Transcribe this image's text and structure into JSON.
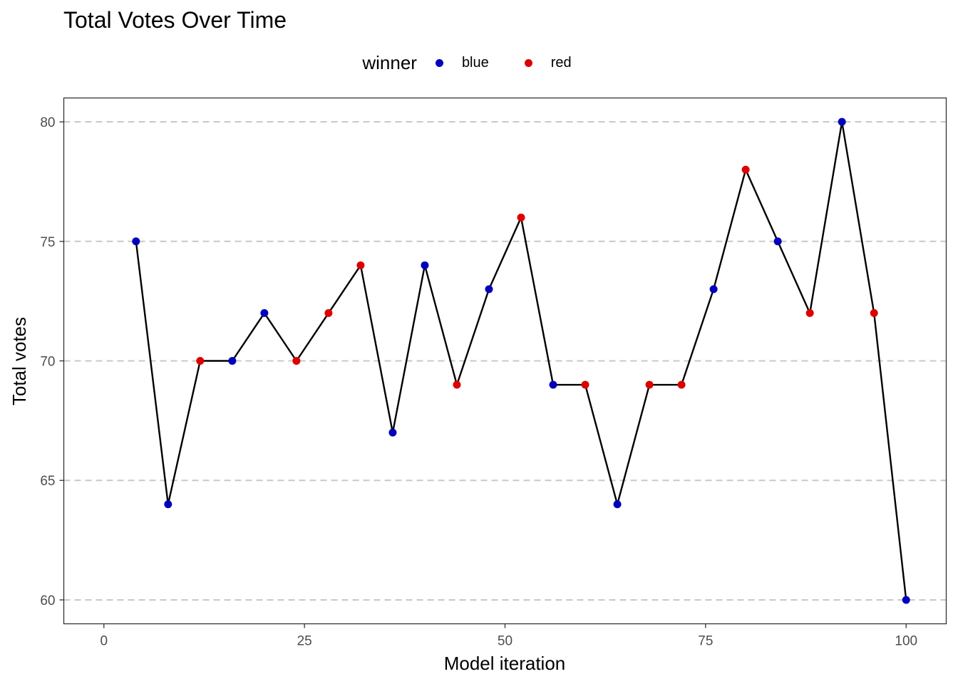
{
  "chart_data": {
    "type": "line",
    "title": "Total Votes Over Time",
    "xlabel": "Model iteration",
    "ylabel": "Total votes",
    "xlim": [
      -5,
      105
    ],
    "ylim": [
      59,
      81
    ],
    "x_ticks": [
      0,
      25,
      50,
      75,
      100
    ],
    "y_ticks": [
      60,
      65,
      70,
      75,
      80
    ],
    "grid": "horizontal dashed major lines",
    "legend": {
      "title": "winner",
      "placement": "top",
      "entries": [
        {
          "label": "blue",
          "color": "#0000bb"
        },
        {
          "label": "red",
          "color": "#dd0000"
        }
      ]
    },
    "line_color": "#000000",
    "points": [
      {
        "x": 4,
        "y": 75,
        "winner": "blue"
      },
      {
        "x": 8,
        "y": 64,
        "winner": "blue"
      },
      {
        "x": 12,
        "y": 70,
        "winner": "red"
      },
      {
        "x": 16,
        "y": 70,
        "winner": "blue"
      },
      {
        "x": 20,
        "y": 72,
        "winner": "blue"
      },
      {
        "x": 24,
        "y": 70,
        "winner": "red"
      },
      {
        "x": 28,
        "y": 72,
        "winner": "red"
      },
      {
        "x": 32,
        "y": 74,
        "winner": "red"
      },
      {
        "x": 36,
        "y": 67,
        "winner": "blue"
      },
      {
        "x": 40,
        "y": 74,
        "winner": "blue"
      },
      {
        "x": 44,
        "y": 69,
        "winner": "red"
      },
      {
        "x": 48,
        "y": 73,
        "winner": "blue"
      },
      {
        "x": 52,
        "y": 76,
        "winner": "red"
      },
      {
        "x": 56,
        "y": 69,
        "winner": "blue"
      },
      {
        "x": 60,
        "y": 69,
        "winner": "red"
      },
      {
        "x": 64,
        "y": 64,
        "winner": "blue"
      },
      {
        "x": 68,
        "y": 69,
        "winner": "red"
      },
      {
        "x": 72,
        "y": 69,
        "winner": "red"
      },
      {
        "x": 76,
        "y": 73,
        "winner": "blue"
      },
      {
        "x": 80,
        "y": 78,
        "winner": "red"
      },
      {
        "x": 84,
        "y": 75,
        "winner": "blue"
      },
      {
        "x": 88,
        "y": 72,
        "winner": "red"
      },
      {
        "x": 92,
        "y": 80,
        "winner": "blue"
      },
      {
        "x": 96,
        "y": 72,
        "winner": "red"
      },
      {
        "x": 100,
        "y": 60,
        "winner": "blue"
      }
    ]
  }
}
